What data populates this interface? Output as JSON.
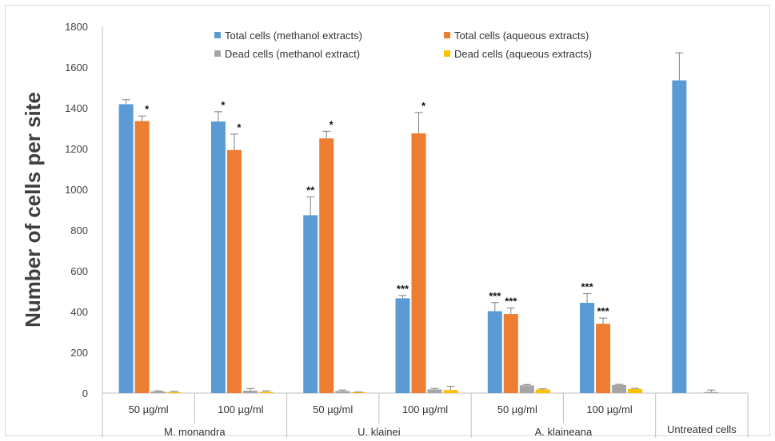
{
  "chart_data": {
    "type": "bar",
    "ylabel": "Number of cells per site",
    "ylim": [
      0,
      1800
    ],
    "yticks": [
      0,
      200,
      400,
      600,
      800,
      1000,
      1200,
      1400,
      1600,
      1800
    ],
    "grid": false,
    "legend_position": "top-center",
    "groups": [
      {
        "name": "M. monandra",
        "subcategories": [
          "50 µg/ml",
          "100 µg/ml"
        ]
      },
      {
        "name": "U. klainei",
        "subcategories": [
          "50 µg/ml",
          "100 µg/ml"
        ]
      },
      {
        "name": "A. klaineana",
        "subcategories": [
          "50 µg/ml",
          "100 µg/ml"
        ]
      },
      {
        "name": "Untreated cells",
        "subcategories": [
          ""
        ]
      }
    ],
    "series": [
      {
        "name": "Total cells (methanol extracts)",
        "color": "#5b9bd5",
        "values": [
          1418,
          1333,
          873,
          465,
          402,
          443,
          1535
        ],
        "errors": [
          22,
          48,
          90,
          14,
          42,
          45,
          135
        ],
        "annotations": [
          "",
          "*",
          "**",
          "***",
          "***",
          "***",
          ""
        ]
      },
      {
        "name": "Total cells (aqueous extracts)",
        "color": "#ed7d31",
        "values": [
          1335,
          1193,
          1250,
          1275,
          388,
          340,
          null
        ],
        "errors": [
          25,
          78,
          35,
          102,
          30,
          28,
          null
        ],
        "annotations": [
          "*",
          "*",
          "*",
          "*",
          "***",
          "***",
          ""
        ]
      },
      {
        "name": "Dead cells (methanol extract)",
        "color": "#a5a5a5",
        "values": [
          8,
          12,
          10,
          18,
          38,
          40,
          5
        ],
        "errors": [
          3,
          10,
          5,
          5,
          4,
          3,
          10
        ],
        "annotations": [
          "",
          "",
          "",
          "",
          "",
          "",
          ""
        ]
      },
      {
        "name": "Dead cells (aqueous extracts)",
        "color": "#ffc000",
        "values": [
          5,
          6,
          3,
          15,
          18,
          20,
          null
        ],
        "errors": [
          3,
          5,
          2,
          18,
          3,
          3,
          null
        ],
        "annotations": [
          "",
          "",
          "",
          "",
          "",
          "",
          ""
        ]
      }
    ]
  }
}
